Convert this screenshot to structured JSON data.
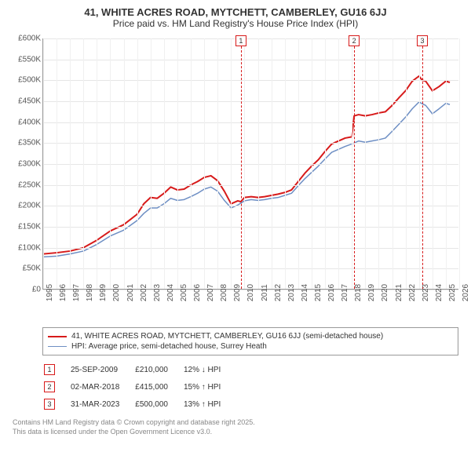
{
  "title": "41, WHITE ACRES ROAD, MYTCHETT, CAMBERLEY, GU16 6JJ",
  "subtitle": "Price paid vs. HM Land Registry's House Price Index (HPI)",
  "chart": {
    "type": "line",
    "background_color": "#ffffff",
    "grid_color": "#e6e6e6",
    "ylim": [
      0,
      600000
    ],
    "ytick_step": 50000,
    "ytick_prefix": "£",
    "ytick_suffix": "K",
    "x_years": [
      1995,
      1996,
      1997,
      1998,
      1999,
      2000,
      2001,
      2002,
      2003,
      2004,
      2005,
      2006,
      2007,
      2008,
      2009,
      2010,
      2011,
      2012,
      2013,
      2014,
      2015,
      2016,
      2017,
      2018,
      2019,
      2020,
      2021,
      2022,
      2023,
      2024,
      2025,
      2026
    ],
    "xlim": [
      1995,
      2026
    ],
    "label_fontsize": 10,
    "series": [
      {
        "name": "41, WHITE ACRES ROAD, MYTCHETT, CAMBERLEY, GU16 6JJ (semi-detached house)",
        "color": "#d71a1a",
        "line_width": 2,
        "points": [
          [
            1995.0,
            85000
          ],
          [
            1996.0,
            88000
          ],
          [
            1997.0,
            92000
          ],
          [
            1998.0,
            100000
          ],
          [
            1999.0,
            118000
          ],
          [
            2000.0,
            140000
          ],
          [
            2001.0,
            155000
          ],
          [
            2002.0,
            180000
          ],
          [
            2002.5,
            205000
          ],
          [
            2003.0,
            220000
          ],
          [
            2003.5,
            218000
          ],
          [
            2004.0,
            230000
          ],
          [
            2004.5,
            245000
          ],
          [
            2005.0,
            238000
          ],
          [
            2005.5,
            240000
          ],
          [
            2006.0,
            250000
          ],
          [
            2006.5,
            258000
          ],
          [
            2007.0,
            268000
          ],
          [
            2007.5,
            272000
          ],
          [
            2008.0,
            260000
          ],
          [
            2008.5,
            235000
          ],
          [
            2009.0,
            205000
          ],
          [
            2009.5,
            212000
          ],
          [
            2009.73,
            210000
          ],
          [
            2010.0,
            220000
          ],
          [
            2010.5,
            222000
          ],
          [
            2011.0,
            220000
          ],
          [
            2011.5,
            222000
          ],
          [
            2012.0,
            225000
          ],
          [
            2012.5,
            228000
          ],
          [
            2013.0,
            232000
          ],
          [
            2013.5,
            238000
          ],
          [
            2014.0,
            258000
          ],
          [
            2014.5,
            278000
          ],
          [
            2015.0,
            295000
          ],
          [
            2015.5,
            310000
          ],
          [
            2016.0,
            330000
          ],
          [
            2016.5,
            348000
          ],
          [
            2017.0,
            355000
          ],
          [
            2017.5,
            362000
          ],
          [
            2018.0,
            365000
          ],
          [
            2018.17,
            415000
          ],
          [
            2018.5,
            418000
          ],
          [
            2019.0,
            415000
          ],
          [
            2019.5,
            418000
          ],
          [
            2020.0,
            422000
          ],
          [
            2020.5,
            425000
          ],
          [
            2021.0,
            440000
          ],
          [
            2021.5,
            458000
          ],
          [
            2022.0,
            475000
          ],
          [
            2022.5,
            498000
          ],
          [
            2023.0,
            510000
          ],
          [
            2023.25,
            500000
          ],
          [
            2023.5,
            498000
          ],
          [
            2024.0,
            475000
          ],
          [
            2024.5,
            485000
          ],
          [
            2025.0,
            498000
          ],
          [
            2025.3,
            495000
          ]
        ]
      },
      {
        "name": "HPI: Average price, semi-detached house, Surrey Heath",
        "color": "#6e8fc4",
        "line_width": 1.5,
        "points": [
          [
            1995.0,
            78000
          ],
          [
            1996.0,
            80000
          ],
          [
            1997.0,
            85000
          ],
          [
            1998.0,
            92000
          ],
          [
            1999.0,
            108000
          ],
          [
            2000.0,
            128000
          ],
          [
            2001.0,
            142000
          ],
          [
            2002.0,
            165000
          ],
          [
            2002.5,
            182000
          ],
          [
            2003.0,
            195000
          ],
          [
            2003.5,
            195000
          ],
          [
            2004.0,
            205000
          ],
          [
            2004.5,
            218000
          ],
          [
            2005.0,
            213000
          ],
          [
            2005.5,
            215000
          ],
          [
            2006.0,
            222000
          ],
          [
            2006.5,
            230000
          ],
          [
            2007.0,
            240000
          ],
          [
            2007.5,
            245000
          ],
          [
            2008.0,
            235000
          ],
          [
            2008.5,
            213000
          ],
          [
            2009.0,
            195000
          ],
          [
            2009.5,
            202000
          ],
          [
            2010.0,
            212000
          ],
          [
            2010.5,
            215000
          ],
          [
            2011.0,
            213000
          ],
          [
            2011.5,
            215000
          ],
          [
            2012.0,
            218000
          ],
          [
            2012.5,
            220000
          ],
          [
            2013.0,
            225000
          ],
          [
            2013.5,
            230000
          ],
          [
            2014.0,
            248000
          ],
          [
            2014.5,
            265000
          ],
          [
            2015.0,
            280000
          ],
          [
            2015.5,
            295000
          ],
          [
            2016.0,
            312000
          ],
          [
            2016.5,
            328000
          ],
          [
            2017.0,
            335000
          ],
          [
            2017.5,
            342000
          ],
          [
            2018.0,
            348000
          ],
          [
            2018.5,
            355000
          ],
          [
            2019.0,
            352000
          ],
          [
            2019.5,
            355000
          ],
          [
            2020.0,
            358000
          ],
          [
            2020.5,
            362000
          ],
          [
            2021.0,
            378000
          ],
          [
            2021.5,
            395000
          ],
          [
            2022.0,
            412000
          ],
          [
            2022.5,
            432000
          ],
          [
            2023.0,
            448000
          ],
          [
            2023.5,
            440000
          ],
          [
            2024.0,
            420000
          ],
          [
            2024.5,
            432000
          ],
          [
            2025.0,
            445000
          ],
          [
            2025.3,
            442000
          ]
        ]
      }
    ],
    "events": [
      {
        "num": "1",
        "x": 2009.73,
        "color": "#d71a1a",
        "date": "25-SEP-2009",
        "price": "£210,000",
        "delta": "12% ↓ HPI"
      },
      {
        "num": "2",
        "x": 2018.17,
        "color": "#d71a1a",
        "date": "02-MAR-2018",
        "price": "£415,000",
        "delta": "15% ↑ HPI"
      },
      {
        "num": "3",
        "x": 2023.25,
        "color": "#d71a1a",
        "date": "31-MAR-2023",
        "price": "£500,000",
        "delta": "13% ↑ HPI"
      }
    ]
  },
  "footer": {
    "line1": "Contains HM Land Registry data © Crown copyright and database right 2025.",
    "line2": "This data is licensed under the Open Government Licence v3.0."
  }
}
